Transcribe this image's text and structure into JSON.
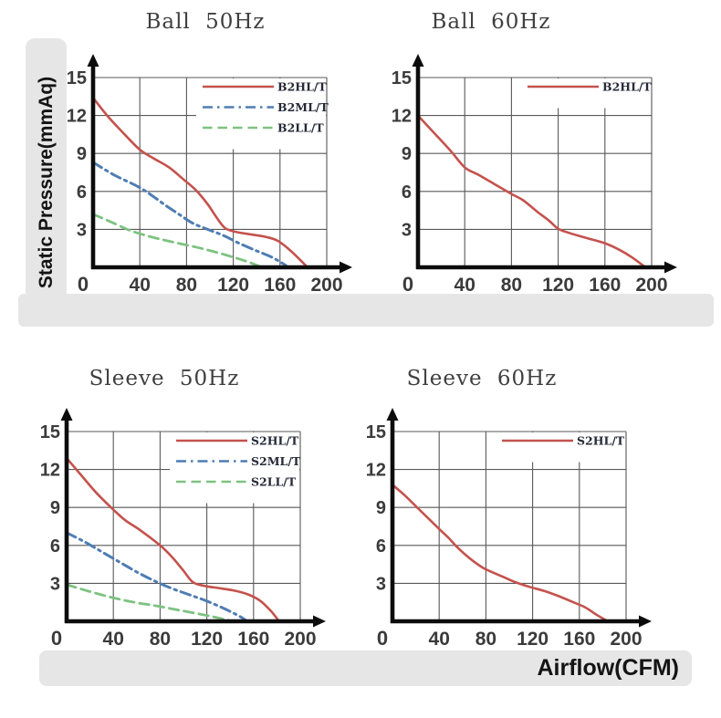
{
  "labels": {
    "y_axis": "Static Pressure(mmAq)",
    "x_axis": "Airflow(CFM)"
  },
  "colors": {
    "band_gray": "#e6e6e6",
    "grid": "#585858",
    "axis": "#0c0c0c",
    "tick_text": "#3b3b3b",
    "legend_text": "#252a38",
    "title_text": "#3f3f3f",
    "series_red": "#c4524d",
    "series_blue": "#4f7db3",
    "series_green": "#7dc280"
  },
  "axes": {
    "x_ticks": [
      0,
      40,
      80,
      120,
      160,
      200
    ],
    "y_ticks": [
      3,
      6,
      9,
      12,
      15
    ],
    "x_max": 200,
    "y_max": 15,
    "grid": true
  },
  "chart_data": [
    {
      "type": "line",
      "title": "Ball 50Hz",
      "xlabel": "Airflow(CFM)",
      "ylabel": "Static Pressure(mmAq)",
      "xlim": [
        0,
        200
      ],
      "ylim": [
        0,
        15
      ],
      "legend_position": "upper-right",
      "series": [
        {
          "name": "B2HL/T",
          "color": "#c4524d",
          "style": "solid",
          "points": [
            [
              0,
              13.4
            ],
            [
              12,
              12.0
            ],
            [
              25,
              10.7
            ],
            [
              40,
              9.3
            ],
            [
              52,
              8.6
            ],
            [
              65,
              7.9
            ],
            [
              78,
              6.9
            ],
            [
              88,
              6.1
            ],
            [
              98,
              5.0
            ],
            [
              106,
              3.9
            ],
            [
              113,
              3.1
            ],
            [
              122,
              2.8
            ],
            [
              135,
              2.6
            ],
            [
              148,
              2.4
            ],
            [
              158,
              2.1
            ],
            [
              168,
              1.4
            ],
            [
              176,
              0.7
            ],
            [
              183,
              0.05
            ]
          ]
        },
        {
          "name": "B2ML/T",
          "color": "#4f7db3",
          "style": "dashdot",
          "points": [
            [
              0,
              8.3
            ],
            [
              18,
              7.3
            ],
            [
              38,
              6.4
            ],
            [
              50,
              5.7
            ],
            [
              62,
              4.9
            ],
            [
              75,
              4.1
            ],
            [
              85,
              3.5
            ],
            [
              98,
              3.0
            ],
            [
              112,
              2.5
            ],
            [
              125,
              1.9
            ],
            [
              140,
              1.3
            ],
            [
              153,
              0.8
            ],
            [
              165,
              0.15
            ]
          ]
        },
        {
          "name": "B2LL/T",
          "color": "#7dc280",
          "style": "dashed",
          "points": [
            [
              0,
              4.2
            ],
            [
              15,
              3.6
            ],
            [
              32,
              2.9
            ],
            [
              50,
              2.4
            ],
            [
              68,
              2.0
            ],
            [
              88,
              1.6
            ],
            [
              105,
              1.2
            ],
            [
              120,
              0.8
            ],
            [
              132,
              0.45
            ],
            [
              143,
              0.05
            ]
          ]
        }
      ]
    },
    {
      "type": "line",
      "title": "Ball 60Hz",
      "xlabel": "Airflow(CFM)",
      "ylabel": "Static Pressure(mmAq)",
      "xlim": [
        0,
        200
      ],
      "ylim": [
        0,
        15
      ],
      "legend_position": "upper-right",
      "series": [
        {
          "name": "B2HL/T",
          "color": "#c4524d",
          "style": "solid",
          "points": [
            [
              0,
              12.0
            ],
            [
              14,
              10.6
            ],
            [
              28,
              9.2
            ],
            [
              40,
              7.9
            ],
            [
              52,
              7.3
            ],
            [
              65,
              6.6
            ],
            [
              80,
              5.8
            ],
            [
              90,
              5.3
            ],
            [
              102,
              4.4
            ],
            [
              112,
              3.7
            ],
            [
              120,
              3.05
            ],
            [
              130,
              2.7
            ],
            [
              145,
              2.3
            ],
            [
              160,
              1.9
            ],
            [
              172,
              1.4
            ],
            [
              183,
              0.8
            ],
            [
              194,
              0.05
            ]
          ]
        }
      ]
    },
    {
      "type": "line",
      "title": "Sleeve 50Hz",
      "xlabel": "Airflow(CFM)",
      "ylabel": "Static Pressure(mmAq)",
      "xlim": [
        0,
        200
      ],
      "ylim": [
        0,
        15
      ],
      "legend_position": "upper-right",
      "series": [
        {
          "name": "S2HL/T",
          "color": "#c4524d",
          "style": "solid",
          "points": [
            [
              0,
              12.9
            ],
            [
              12,
              11.6
            ],
            [
              25,
              10.2
            ],
            [
              38,
              9.0
            ],
            [
              50,
              8.0
            ],
            [
              63,
              7.2
            ],
            [
              80,
              6.0
            ],
            [
              90,
              5.1
            ],
            [
              100,
              4.0
            ],
            [
              108,
              3.1
            ],
            [
              118,
              2.8
            ],
            [
              132,
              2.6
            ],
            [
              145,
              2.4
            ],
            [
              156,
              2.1
            ],
            [
              166,
              1.6
            ],
            [
              175,
              0.8
            ],
            [
              181,
              0.1
            ]
          ]
        },
        {
          "name": "S2ML/T",
          "color": "#4f7db3",
          "style": "dashdot",
          "points": [
            [
              0,
              7.0
            ],
            [
              15,
              6.3
            ],
            [
              30,
              5.5
            ],
            [
              45,
              4.7
            ],
            [
              60,
              3.9
            ],
            [
              75,
              3.2
            ],
            [
              90,
              2.6
            ],
            [
              105,
              2.1
            ],
            [
              120,
              1.6
            ],
            [
              135,
              1.0
            ],
            [
              148,
              0.4
            ],
            [
              153,
              0.1
            ]
          ]
        },
        {
          "name": "S2LL/T",
          "color": "#7dc280",
          "style": "dashed",
          "points": [
            [
              0,
              2.9
            ],
            [
              18,
              2.4
            ],
            [
              38,
              1.9
            ],
            [
              58,
              1.5
            ],
            [
              78,
              1.2
            ],
            [
              98,
              0.85
            ],
            [
              118,
              0.5
            ],
            [
              133,
              0.2
            ],
            [
              140,
              0.05
            ]
          ]
        }
      ]
    },
    {
      "type": "line",
      "title": "Sleeve 60Hz",
      "xlabel": "Airflow(CFM)",
      "ylabel": "Static Pressure(mmAq)",
      "xlim": [
        0,
        200
      ],
      "ylim": [
        0,
        15
      ],
      "legend_position": "upper-right",
      "series": [
        {
          "name": "S2HL/T",
          "color": "#c4524d",
          "style": "solid",
          "points": [
            [
              0,
              10.8
            ],
            [
              10,
              10.0
            ],
            [
              20,
              9.1
            ],
            [
              30,
              8.2
            ],
            [
              40,
              7.3
            ],
            [
              48,
              6.6
            ],
            [
              55,
              5.9
            ],
            [
              62,
              5.3
            ],
            [
              70,
              4.7
            ],
            [
              78,
              4.2
            ],
            [
              85,
              3.9
            ],
            [
              95,
              3.5
            ],
            [
              105,
              3.1
            ],
            [
              118,
              2.7
            ],
            [
              130,
              2.4
            ],
            [
              142,
              2.0
            ],
            [
              155,
              1.5
            ],
            [
              165,
              1.1
            ],
            [
              175,
              0.5
            ],
            [
              184,
              0.02
            ]
          ]
        }
      ]
    }
  ]
}
